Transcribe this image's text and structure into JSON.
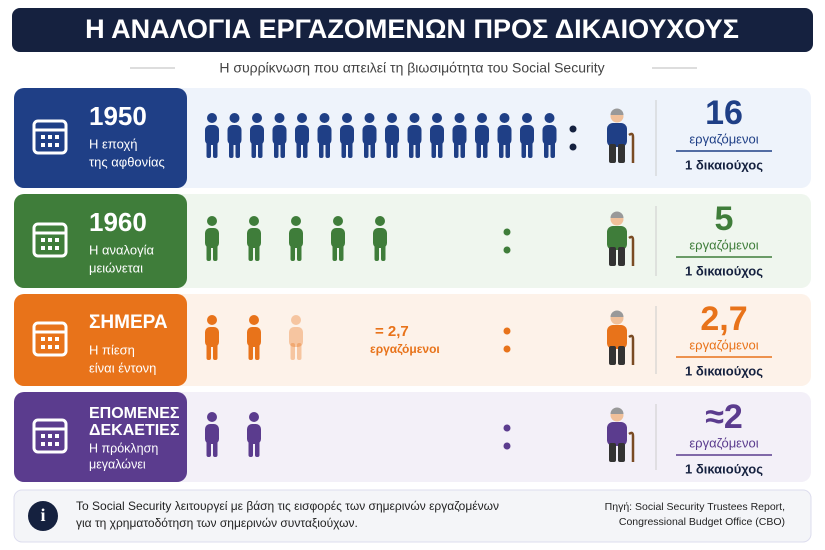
{
  "header": {
    "title": "Η ΑΝΑΛΟΓΙΑ ΕΡΓΑΖΟΜΕΝΩΝ ΠΡΟΣ ΔΙΚΑΙΟΥΧΟΥΣ",
    "subtitle": "Η συρρίκνωση που απειλεί τη βιωσιμότητα του Social Security"
  },
  "rows": [
    {
      "period": "1950",
      "desc": [
        "Η εποχή",
        "της αφθονίας"
      ],
      "workers": {
        "value": 16,
        "label": "16"
      },
      "unit": "εργαζόμενοι",
      "beneficiary": "1 δικαιούχος",
      "color": "#1f3f86",
      "tint": "#eef3fb"
    },
    {
      "period": "1960",
      "desc": [
        "Η αναλογία",
        "μειώνεται"
      ],
      "workers": {
        "value": 5,
        "label": "5"
      },
      "unit": "εργαζόμενοι",
      "beneficiary": "1 δικαιούχος",
      "color": "#3f7d3a",
      "tint": "#eff6ee"
    },
    {
      "period": "ΣΗΜΕΡΑ",
      "desc": [
        "Η πίεση",
        "είναι έντονη"
      ],
      "workers": {
        "value": 2.7,
        "label": "2,7"
      },
      "unit": "εργαζόμενοι",
      "beneficiary": "1 δικαιούχος",
      "note": [
        "= 2,7",
        "εργαζόμενοι"
      ],
      "color": "#e8731a",
      "tint": "#fdf2e9"
    },
    {
      "period": "ΕΠΟΜΕΝΕΣ ΔΕΚΑΕΤΙΕΣ",
      "periodLines": [
        "ΕΠΟΜΕΝΕΣ",
        "ΔΕΚΑΕΤΙΕΣ"
      ],
      "desc": [
        "Η πρόκληση",
        "μεγαλώνει"
      ],
      "workers": {
        "value": 2,
        "label": "≈2"
      },
      "unit": "εργαζόμενοι",
      "beneficiary": "1 δικαιούχος",
      "color": "#5b3c8e",
      "tint": "#f3f0f8"
    }
  ],
  "footer": {
    "text": [
      "Το Social Security λειτουργεί με βάση τις εισφορές των σημερινών εργαζομένων",
      "για τη χρηματοδότηση των σημερινών συνταξιούχων."
    ],
    "source": [
      "Πηγή: Social Security Trustees Report,",
      "Congressional Budget Office (CBO)"
    ]
  }
}
